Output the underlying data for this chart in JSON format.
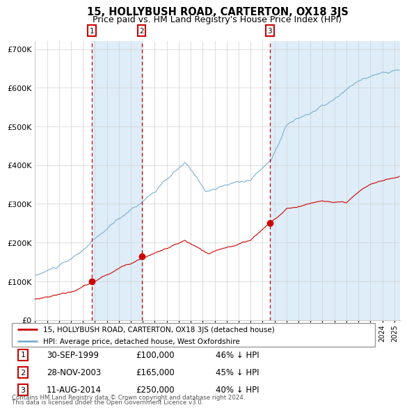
{
  "title": "15, HOLLYBUSH ROAD, CARTERTON, OX18 3JS",
  "subtitle": "Price paid vs. HM Land Registry's House Price Index (HPI)",
  "legend_line1": "15, HOLLYBUSH ROAD, CARTERTON, OX18 3JS (detached house)",
  "legend_line2": "HPI: Average price, detached house, West Oxfordshire",
  "transactions": [
    {
      "num": 1,
      "date": "30-SEP-1999",
      "price": 100000,
      "pct": "46% ↓ HPI",
      "year": 1999.75
    },
    {
      "num": 2,
      "date": "28-NOV-2003",
      "price": 165000,
      "pct": "45% ↓ HPI",
      "year": 2003.9
    },
    {
      "num": 3,
      "date": "11-AUG-2014",
      "price": 250000,
      "pct": "40% ↓ HPI",
      "year": 2014.6
    }
  ],
  "footer1": "Contains HM Land Registry data © Crown copyright and database right 2024.",
  "footer2": "This data is licensed under the Open Government Licence v3.0.",
  "hpi_color": "#7ab0d4",
  "price_color": "#cc0000",
  "bg_shade_color": "#deedf8",
  "vline_color": "#cc0000",
  "marker_color": "#cc0000",
  "ylim": [
    0,
    720000
  ],
  "xlim_start": 1995.0,
  "xlim_end": 2025.5
}
